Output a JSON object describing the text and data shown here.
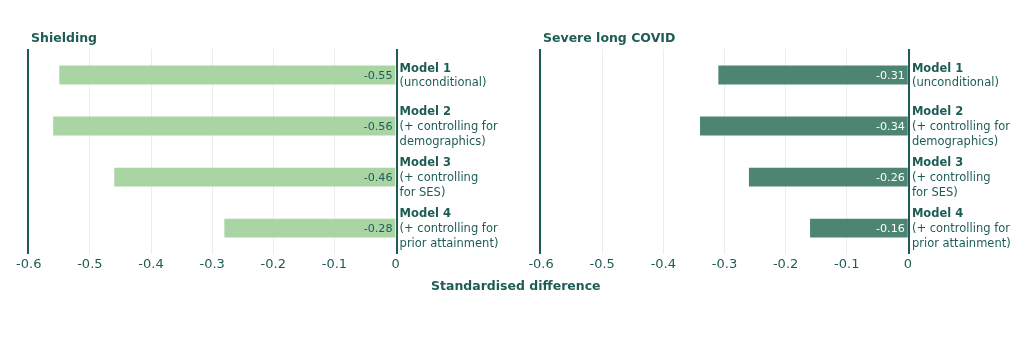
{
  "chart_data": [
    {
      "type": "bar",
      "orientation": "horizontal",
      "title": "Shielding",
      "xlabel": "Standardised difference",
      "categories": [
        "Model 1\n(unconditional)",
        "Model 2\n(+ controlling for\ndemographics)",
        "Model 3\n(+ controlling\nfor SES)",
        "Model 4\n(+ controlling for\nprior attainment)"
      ],
      "values": [
        -0.55,
        -0.56,
        -0.46,
        -0.28
      ],
      "color": "#a9d4a3",
      "xlim": [
        -0.6,
        0
      ],
      "xticks": [
        -0.6,
        -0.5,
        -0.4,
        -0.3,
        -0.2,
        -0.1,
        0
      ],
      "grid": "x",
      "data_labels": true
    },
    {
      "type": "bar",
      "orientation": "horizontal",
      "title": "Severe long COVID",
      "categories": [
        "Model 1\n(unconditional)",
        "Model 2\n(+ controlling for\ndemographics)",
        "Model 3\n(+ controlling\nfor SES)",
        "Model 4\n(+ controlling for\nprior attainment)"
      ],
      "values": [
        -0.31,
        -0.34,
        -0.26,
        -0.16
      ],
      "color": "#4d8572",
      "xlim": [
        -0.6,
        0
      ],
      "xticks": [
        -0.6,
        -0.5,
        -0.4,
        -0.3,
        -0.2,
        -0.1,
        0
      ],
      "grid": "x",
      "data_labels": true
    }
  ]
}
